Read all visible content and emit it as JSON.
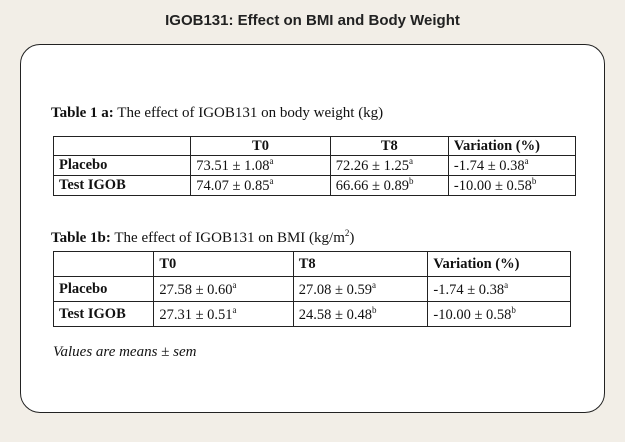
{
  "header": {
    "title": "IGOB131: Effect on BMI and Body Weight"
  },
  "table1a": {
    "caption_bold": "Table 1 a:",
    "caption": " The effect of IGOB131 on body weight (kg)",
    "headers": [
      "",
      "T0",
      "T8",
      "Variation (%)"
    ],
    "rows": [
      {
        "label": "Placebo",
        "cells": [
          {
            "v": "73.51 ± 1.08",
            "s": "a"
          },
          {
            "v": "72.26 ± 1.25",
            "s": "a"
          },
          {
            "v": "-1.74 ± 0.38",
            "s": "a"
          }
        ]
      },
      {
        "label": "Test IGOB",
        "cells": [
          {
            "v": "74.07 ± 0.85",
            "s": "a"
          },
          {
            "v": "66.66 ± 0.89",
            "s": "b"
          },
          {
            "v": "-10.00 ± 0.58",
            "s": "b"
          }
        ]
      }
    ]
  },
  "table1b": {
    "caption_bold": "Table 1b:",
    "caption": "  The effect of IGOB131 on BMI (kg/m",
    "caption_sup": "2",
    "caption_end": ")",
    "headers": [
      "",
      "T0",
      "T8",
      "Variation (%)"
    ],
    "rows": [
      {
        "label": "Placebo",
        "cells": [
          {
            "v": "27.58 ± 0.60",
            "s": "a"
          },
          {
            "v": "27.08  ± 0.59",
            "s": "a"
          },
          {
            "v": "-1.74 ± 0.38",
            "s": "a"
          }
        ]
      },
      {
        "label": "Test IGOB",
        "cells": [
          {
            "v": "27.31 ± 0.51",
            "s": "a"
          },
          {
            "v": "24.58 ± 0.48",
            "s": "b"
          },
          {
            "v": "-10.00 ± 0.58",
            "s": "b"
          }
        ]
      }
    ]
  },
  "note": "Values are means ± sem"
}
